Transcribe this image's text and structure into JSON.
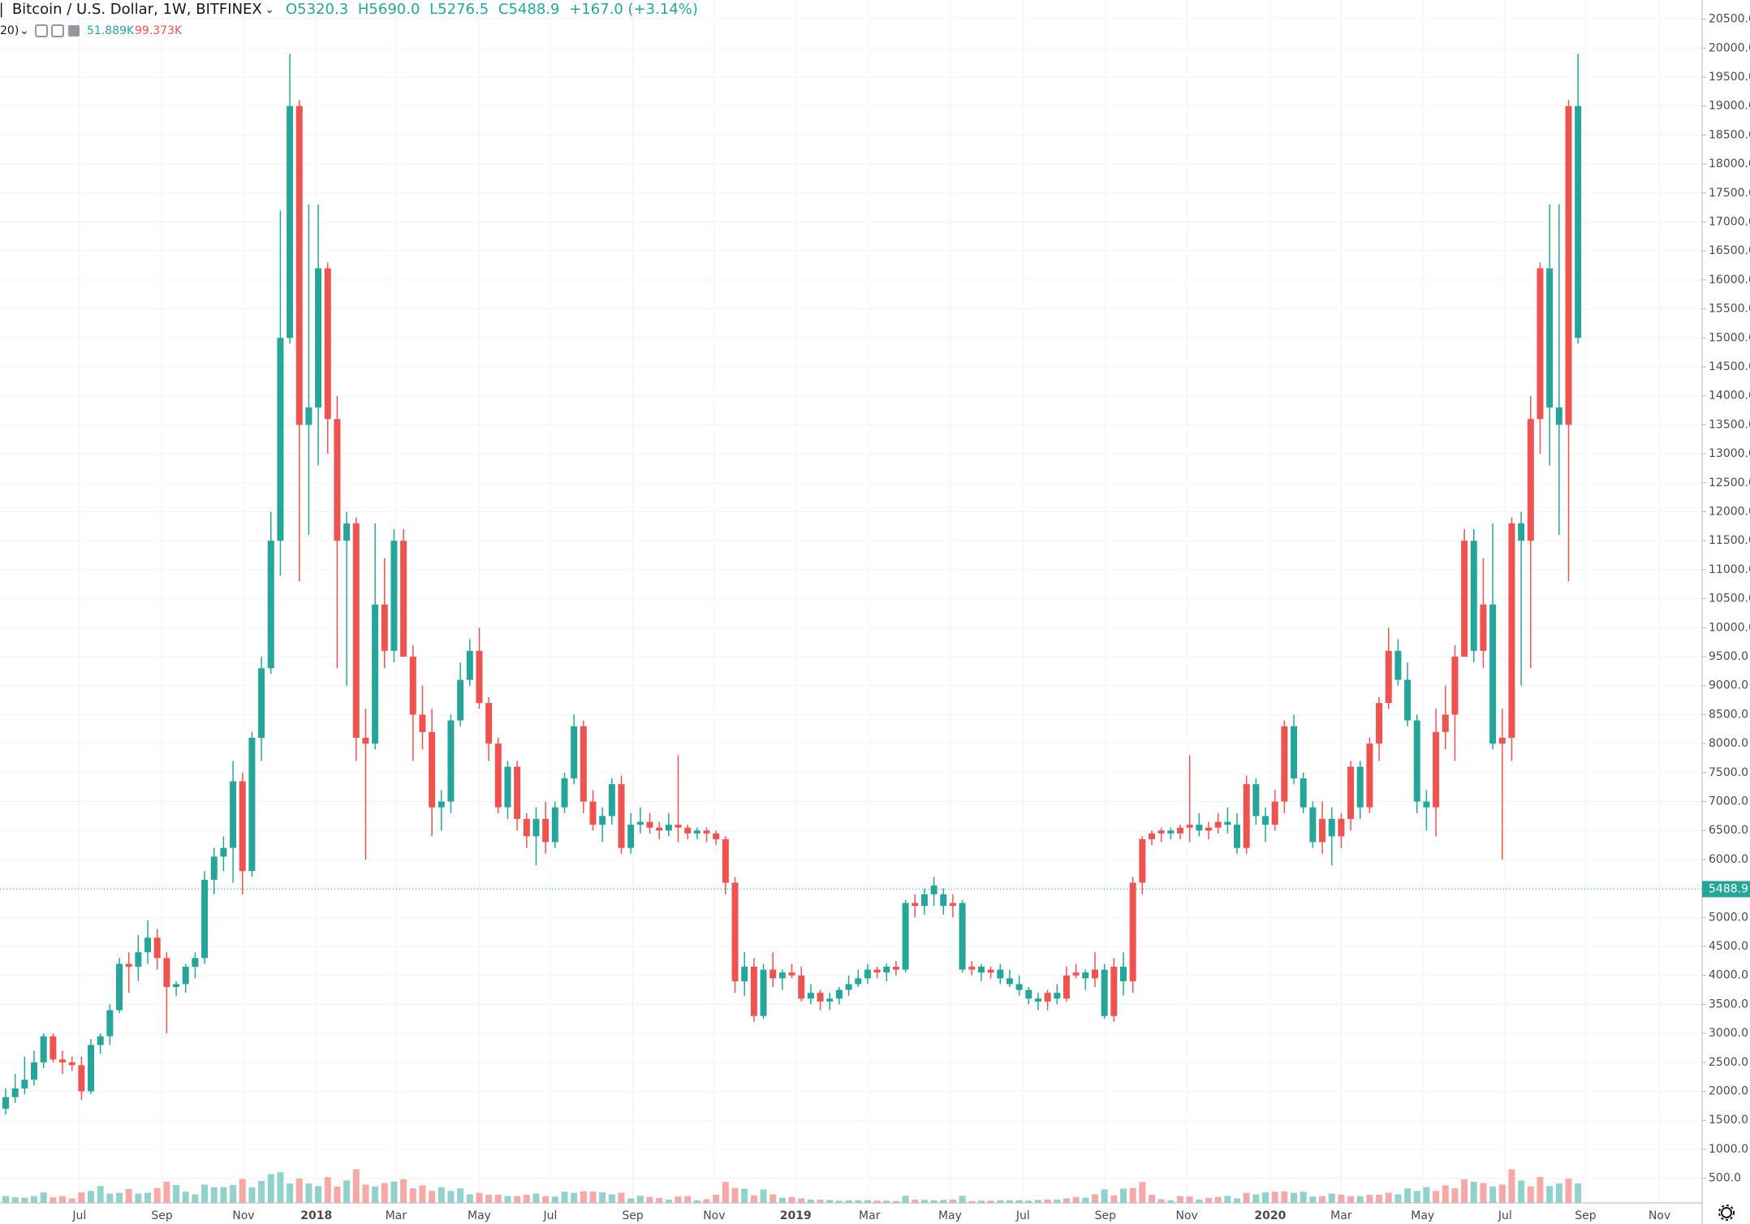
{
  "chart_data": {
    "type": "candlestick",
    "header": {
      "symbol": "Bitcoin / U.S. Dollar, 1W, BITFINEX",
      "ohlc": [
        "O5320.3",
        "H5690.0",
        "L5276.5",
        "C5488.9",
        "+167.0 (+3.14%)"
      ],
      "volume": [
        "20)",
        "51.889K",
        "99.373K"
      ]
    },
    "up_color": "#26a69a",
    "down_color": "#ef5350",
    "grid": true,
    "last_price": 5488.9,
    "xlim": [
      -0.6,
      179.1
    ],
    "xticks": [
      {
        "value": 7.78,
        "label": "Jul"
      },
      {
        "value": 16.5,
        "label": "Sep"
      },
      {
        "value": 25.1,
        "label": "Nov"
      },
      {
        "value": 32.8,
        "label": "2018"
      },
      {
        "value": 41.2,
        "label": "Mar"
      },
      {
        "value": 50.0,
        "label": "May"
      },
      {
        "value": 57.5,
        "label": "Jul"
      },
      {
        "value": 66.2,
        "label": "Sep"
      },
      {
        "value": 74.8,
        "label": "Nov"
      },
      {
        "value": 83.4,
        "label": "2019"
      },
      {
        "value": 91.2,
        "label": "Mar"
      },
      {
        "value": 99.7,
        "label": "May"
      },
      {
        "value": 107.4,
        "label": "Jul"
      },
      {
        "value": 116.1,
        "label": "Sep"
      },
      {
        "value": 124.7,
        "label": "Nov"
      },
      {
        "value": 133.5,
        "label": "2020"
      },
      {
        "value": 141.0,
        "label": "Mar"
      },
      {
        "value": 149.6,
        "label": "May"
      },
      {
        "value": 158.3,
        "label": "Jul"
      },
      {
        "value": 166.8,
        "label": "Sep"
      },
      {
        "value": 174.6,
        "label": "Nov"
      }
    ],
    "ylim": [
      75,
      20830
    ],
    "yticks": [
      {
        "value": 500,
        "label": "500.0"
      },
      {
        "value": 1000,
        "label": "1000.0"
      },
      {
        "value": 1500,
        "label": "1500.0"
      },
      {
        "value": 2000,
        "label": "2000.0"
      },
      {
        "value": 2500,
        "label": "2500.0"
      },
      {
        "value": 3000,
        "label": "3000.0"
      },
      {
        "value": 3500,
        "label": "3500.0"
      },
      {
        "value": 4000,
        "label": "4000.0"
      },
      {
        "value": 4500,
        "label": "4500.0"
      },
      {
        "value": 5000,
        "label": "5000.0"
      },
      {
        "value": 5500,
        "label": "5500.0"
      },
      {
        "value": 6000,
        "label": "6000.0"
      },
      {
        "value": 6500,
        "label": "6500.0"
      },
      {
        "value": 7000,
        "label": "7000.0"
      },
      {
        "value": 7500,
        "label": "7500.0"
      },
      {
        "value": 8000,
        "label": "8000.0"
      },
      {
        "value": 8500,
        "label": "8500.0"
      },
      {
        "value": 9000,
        "label": "9000.0"
      },
      {
        "value": 9500,
        "label": "9500.0"
      },
      {
        "value": 10000,
        "label": "10000.0"
      },
      {
        "value": 10500,
        "label": "10500.0"
      },
      {
        "value": 11000,
        "label": "11000.0"
      },
      {
        "value": 11500,
        "label": "11500.0"
      },
      {
        "value": 12000,
        "label": "12000.0"
      },
      {
        "value": 12500,
        "label": "12500.0"
      },
      {
        "value": 13000,
        "label": "13000.0"
      },
      {
        "value": 13500,
        "label": "13500.0"
      },
      {
        "value": 14000,
        "label": "14000.0"
      },
      {
        "value": 14500,
        "label": "14500.0"
      },
      {
        "value": 15000,
        "label": "15000.0"
      },
      {
        "value": 15500,
        "label": "15500.0"
      },
      {
        "value": 16000,
        "label": "16000.0"
      },
      {
        "value": 16500,
        "label": "16500.0"
      },
      {
        "value": 17000,
        "label": "17000.0"
      },
      {
        "value": 17500,
        "label": "17500.0"
      },
      {
        "value": 18000,
        "label": "18000.0"
      },
      {
        "value": 18500,
        "label": "18500.0"
      },
      {
        "value": 19000,
        "label": "19000.0"
      },
      {
        "value": 19500,
        "label": "19500.0"
      },
      {
        "value": 20000,
        "label": "20000.0"
      },
      {
        "value": 20500,
        "label": "20500.0"
      }
    ],
    "open": [
      1700,
      1900,
      2050,
      2200,
      2500,
      2950,
      2550,
      2500,
      2450,
      2000,
      2800,
      2950,
      3400,
      4200,
      4150,
      4400,
      4650,
      4300,
      3800,
      3850,
      4150,
      4300,
      5650,
      6050,
      6200,
      7350,
      5800,
      8100,
      9300,
      11500,
      15000,
      19000,
      13500,
      13800,
      16200,
      13600,
      11500,
      11800,
      8100,
      8000,
      10400,
      9600,
      11500,
      9500,
      8500,
      8200,
      6900,
      7000,
      8400,
      9100,
      9600,
      8700,
      8000,
      6900,
      7600,
      6700,
      6400,
      6700,
      6300,
      6900,
      7400,
      8300,
      7000,
      6600,
      6750,
      7300,
      6200,
      6600,
      6650,
      6550,
      6500,
      6600,
      6550,
      6450,
      6500,
      6450,
      6350,
      5600,
      3900,
      4150,
      3300,
      4100,
      3950,
      4050,
      4000,
      3600,
      3700,
      3550,
      3600,
      3750,
      3850,
      3950,
      4100,
      4050,
      4150,
      4100,
      5250,
      5200,
      5400,
      5200,
      5250,
      4100,
      4150,
      4050,
      4100,
      3950,
      3850,
      3750,
      3600,
      3550,
      3700,
      3600,
      4000,
      4050,
      3950,
      4100,
      3300,
      4150,
      3900,
      5600,
      6350,
      6450,
      6500,
      6450,
      6550,
      6600,
      6500,
      6550,
      6650,
      6600,
      6200,
      7300,
      6750,
      6600,
      7000,
      8300,
      7400,
      6900,
      6300,
      6700,
      6400,
      6700,
      7600,
      6900,
      8000,
      8700,
      9600,
      9100,
      8400,
      7000,
      6900,
      8200,
      8500,
      9500,
      11500,
      9600,
      10400,
      8000,
      8100,
      11800,
      11500,
      13600,
      16200,
      13800,
      13500,
      19000,
      15000
    ],
    "high": [
      2050,
      2300,
      2600,
      2700,
      3000,
      3000,
      2700,
      2600,
      2600,
      2900,
      3000,
      3500,
      4300,
      4400,
      4700,
      4950,
      4800,
      4400,
      3900,
      4200,
      4400,
      5800,
      6200,
      6400,
      7700,
      7500,
      8200,
      9500,
      12000,
      17200,
      19900,
      19100,
      17300,
      17300,
      16300,
      14000,
      12000,
      11900,
      8600,
      11800,
      11200,
      11700,
      11700,
      9700,
      9000,
      8600,
      7200,
      8500,
      9400,
      9800,
      10000,
      8800,
      8100,
      7700,
      7700,
      6800,
      6900,
      7000,
      7000,
      7500,
      8500,
      8400,
      7200,
      6900,
      7400,
      7450,
      6800,
      6900,
      6800,
      6650,
      6800,
      7800,
      6600,
      6550,
      6550,
      6500,
      6400,
      5700,
      4400,
      4300,
      4200,
      4400,
      4100,
      4200,
      4150,
      3850,
      3750,
      3700,
      3800,
      4000,
      4100,
      4200,
      4150,
      4200,
      4250,
      5300,
      5400,
      5500,
      5700,
      5500,
      5400,
      5300,
      4250,
      4200,
      4150,
      4200,
      4100,
      4000,
      3800,
      3700,
      3750,
      3850,
      4150,
      4200,
      4100,
      4400,
      4200,
      4300,
      4400,
      5700,
      6400,
      6500,
      6550,
      6550,
      6600,
      7800,
      6800,
      6650,
      6800,
      6900,
      6800,
      7450,
      7400,
      6900,
      7200,
      8400,
      8500,
      7500,
      7000,
      7000,
      6900,
      6800,
      7700,
      7700,
      8100,
      8800,
      10000,
      9800,
      9400,
      8500,
      7200,
      8600,
      9000,
      9700,
      11700,
      11700,
      11200,
      11800,
      8600,
      11900,
      12000,
      14000,
      16300,
      17300,
      17300,
      19100,
      19900
    ],
    "low": [
      1600,
      1800,
      1950,
      2100,
      2400,
      2500,
      2300,
      2350,
      1850,
      1950,
      2650,
      2800,
      3350,
      3700,
      3900,
      4200,
      4100,
      3000,
      3650,
      3700,
      3950,
      4200,
      5400,
      5800,
      5600,
      5400,
      5700,
      7700,
      9200,
      10900,
      14900,
      10800,
      11600,
      12800,
      13000,
      9300,
      9000,
      7700,
      6000,
      7900,
      9300,
      9400,
      9500,
      7700,
      7900,
      6400,
      6500,
      6800,
      8300,
      9000,
      8600,
      7700,
      6800,
      6700,
      6500,
      6200,
      5900,
      6100,
      6200,
      6800,
      7300,
      6800,
      6500,
      6300,
      6600,
      6100,
      6100,
      6450,
      6450,
      6350,
      6400,
      6300,
      6350,
      6350,
      6300,
      6250,
      5400,
      3700,
      3650,
      3200,
      3250,
      3800,
      3750,
      3950,
      3550,
      3500,
      3400,
      3400,
      3500,
      3650,
      3800,
      3850,
      3950,
      3900,
      4000,
      4050,
      5000,
      5050,
      5200,
      5050,
      5000,
      4050,
      4000,
      3900,
      3950,
      3850,
      3800,
      3650,
      3500,
      3400,
      3400,
      3500,
      3550,
      3950,
      3750,
      3800,
      3250,
      3200,
      3650,
      3700,
      5400,
      6250,
      6300,
      6350,
      6350,
      6300,
      6400,
      6350,
      6450,
      6450,
      6100,
      6100,
      6600,
      6300,
      6500,
      6800,
      7300,
      6800,
      6200,
      6100,
      5900,
      6200,
      6500,
      6700,
      6800,
      7700,
      8600,
      9000,
      8300,
      6800,
      6500,
      6400,
      7900,
      7700,
      9500,
      9400,
      9300,
      7900,
      6000,
      7700,
      9000,
      9300,
      13000,
      12800,
      11600,
      10800,
      14900
    ],
    "close": [
      1900,
      2050,
      2200,
      2500,
      2950,
      2550,
      2500,
      2450,
      2000,
      2800,
      2950,
      3400,
      4200,
      4150,
      4400,
      4650,
      4300,
      3800,
      3850,
      4150,
      4300,
      5650,
      6050,
      6200,
      7350,
      5800,
      8100,
      9300,
      11500,
      15000,
      19000,
      13500,
      13800,
      16200,
      13600,
      11500,
      11800,
      8100,
      8000,
      10400,
      9600,
      11500,
      9500,
      8500,
      8200,
      6900,
      7000,
      8400,
      9100,
      9600,
      8700,
      8000,
      6900,
      7600,
      6700,
      6400,
      6700,
      6300,
      6900,
      7400,
      8300,
      7000,
      6600,
      6750,
      7300,
      6200,
      6600,
      6650,
      6550,
      6500,
      6600,
      6550,
      6450,
      6500,
      6450,
      6350,
      5600,
      3900,
      4150,
      3300,
      4100,
      3950,
      4050,
      4000,
      3600,
      3700,
      3550,
      3600,
      3750,
      3850,
      3950,
      4100,
      4050,
      4150,
      4100,
      5250,
      5200,
      5400,
      5550,
      5400,
      5200,
      5250,
      4100,
      4150,
      4050,
      4100,
      3950,
      3850,
      3750,
      3600,
      3550,
      3700,
      3600,
      4000,
      4050,
      3950,
      4100,
      3300,
      4150,
      3900,
      5600,
      6350,
      6450,
      6500,
      6450,
      6550,
      6600,
      6500,
      6550,
      6650,
      6600,
      6200,
      7300,
      6750,
      6600,
      7000,
      8300,
      7400,
      6900,
      6300,
      6700,
      6400,
      6700,
      7600,
      6900,
      8000,
      8700,
      9600,
      9100,
      8400,
      7000,
      6900,
      8200,
      8500,
      9500,
      11500,
      9600,
      10400,
      8000,
      8100,
      11800,
      11500,
      13600,
      16200,
      13800,
      13500,
      19000
    ],
    "volume": [
      18,
      15,
      14,
      18,
      28,
      15,
      18,
      12,
      28,
      32,
      45,
      25,
      27,
      37,
      25,
      27,
      40,
      57,
      48,
      30,
      23,
      49,
      42,
      42,
      48,
      64,
      42,
      59,
      77,
      82,
      52,
      65,
      52,
      45,
      69,
      44,
      60,
      90,
      49,
      44,
      53,
      57,
      63,
      39,
      47,
      32,
      42,
      32,
      39,
      23,
      27,
      22,
      22,
      18,
      18,
      22,
      25,
      18,
      17,
      30,
      27,
      31,
      30,
      28,
      23,
      27,
      12,
      19,
      16,
      13,
      9,
      17,
      18,
      7,
      10,
      22,
      56,
      40,
      38,
      20,
      36,
      23,
      14,
      16,
      12,
      9,
      9,
      8,
      6,
      7,
      7,
      7,
      6,
      6,
      5,
      19,
      9,
      8,
      7,
      8,
      9,
      19,
      5,
      6,
      6,
      7,
      7,
      7,
      6,
      8,
      9,
      9,
      12,
      16,
      14,
      23,
      36,
      20,
      38,
      40,
      56,
      22,
      10,
      7,
      18,
      17,
      9,
      13,
      16,
      19,
      12,
      27,
      23,
      28,
      30,
      31,
      27,
      30,
      17,
      18,
      25,
      22,
      18,
      18,
      22,
      22,
      27,
      23,
      39,
      32,
      42,
      32,
      47,
      39,
      63,
      57,
      53,
      44,
      49,
      90,
      60,
      44,
      69,
      45,
      52,
      65,
      52
    ]
  }
}
